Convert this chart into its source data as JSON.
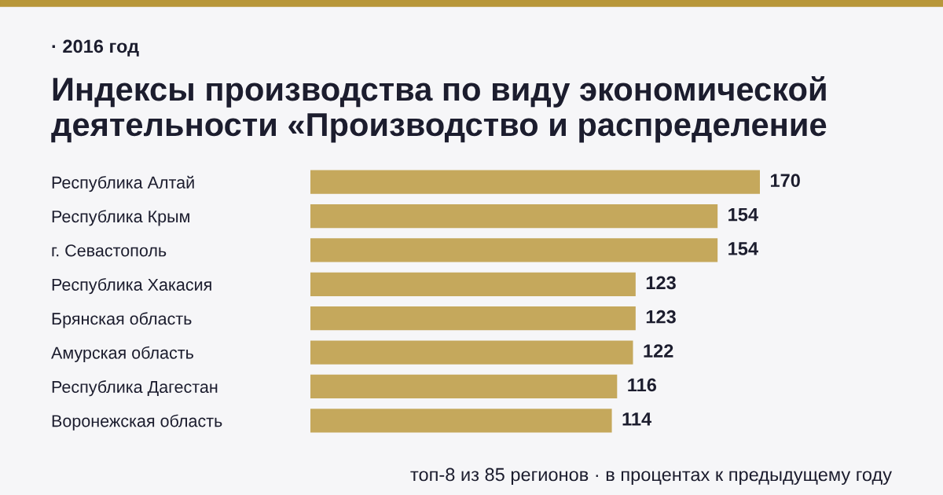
{
  "chart_data": {
    "type": "bar",
    "orientation": "horizontal",
    "title": "Индексы производства по виду экономической\nдеятельности «Производство и распределение",
    "subtitle": "· 2016 год",
    "categories": [
      "Республика Алтай",
      "Республика Крым",
      "г. Севастополь",
      "Республика Хакасия",
      "Брянская область",
      "Амурская область",
      "Республика Дагестан",
      "Воронежская область"
    ],
    "values": [
      170,
      154,
      154,
      123,
      123,
      122,
      116,
      114
    ],
    "color": "#c5a85c",
    "data_labels": true,
    "grid": false,
    "legend": false,
    "annotations": [
      "топ-8 из 85 регионов · в процентах к предыдущему году"
    ]
  }
}
